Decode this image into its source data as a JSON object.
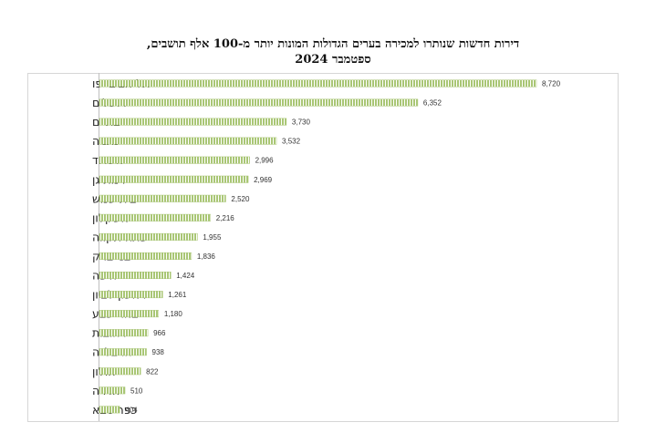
{
  "chart_data": {
    "type": "bar",
    "orientation": "horizontal",
    "title_line1": "דירות חדשות שנותרו למכירה בערים הגדולות המונות יותר מ-100 אלף תושבים,",
    "title_line2": "ספטמבר 2024",
    "categories": [
      "תל אביב-יפו",
      "ירושלים",
      "בת ים",
      "נתניה",
      "אשדוד",
      "רמת גן",
      "בית שמש",
      "אשקלון",
      "פתח תקווה",
      "בני ברק",
      "חיפה",
      "ראשון לציון",
      "באר שבע",
      "רחובות",
      "הרצלייה",
      "חולון",
      "חדרה",
      "כפר סבא"
    ],
    "values": [
      8720,
      6352,
      3730,
      3532,
      2996,
      2969,
      2520,
      2216,
      1955,
      1836,
      1424,
      1261,
      1180,
      966,
      938,
      822,
      510,
      404
    ],
    "value_labels": [
      "8,720",
      "6,352",
      "3,730",
      "3,532",
      "2,996",
      "2,969",
      "2,520",
      "2,216",
      "1,955",
      "1,836",
      "1,424",
      "1,261",
      "1,180",
      "966",
      "938",
      "822",
      "510",
      "404"
    ],
    "xlim": [
      0,
      8720
    ],
    "grid": false,
    "legend": "none",
    "bar_color": "#a9c675",
    "bar_hatch_color": "#ffffff"
  }
}
